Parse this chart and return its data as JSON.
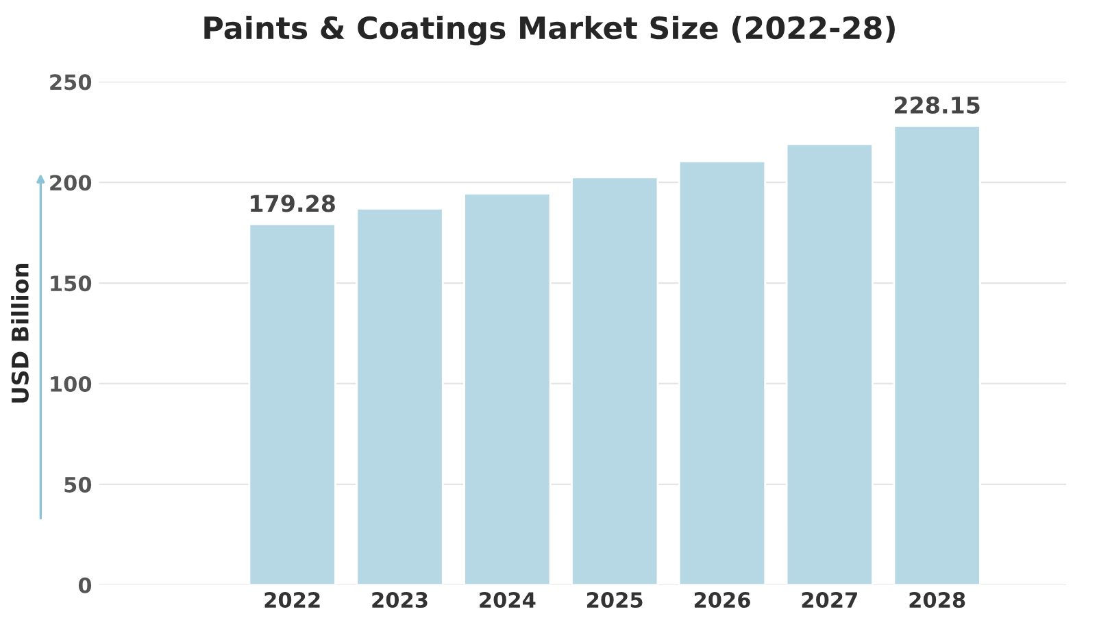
{
  "chart_data": {
    "type": "bar",
    "title": "Paints & Coatings Market Size (2022-28)",
    "ylabel": "USD Billion",
    "categories": [
      "2022",
      "2023",
      "2024",
      "2025",
      "2026",
      "2027",
      "2028"
    ],
    "values": [
      179.28,
      187,
      194.5,
      202.5,
      210.5,
      219,
      228.15
    ],
    "value_labels": [
      "179.28",
      null,
      null,
      null,
      null,
      null,
      "228.15"
    ],
    "color": "#b5d8e4",
    "ylim": [
      0,
      250
    ],
    "yticks": [
      0,
      50,
      100,
      150,
      200,
      250
    ],
    "grid": "y",
    "legend": false
  }
}
